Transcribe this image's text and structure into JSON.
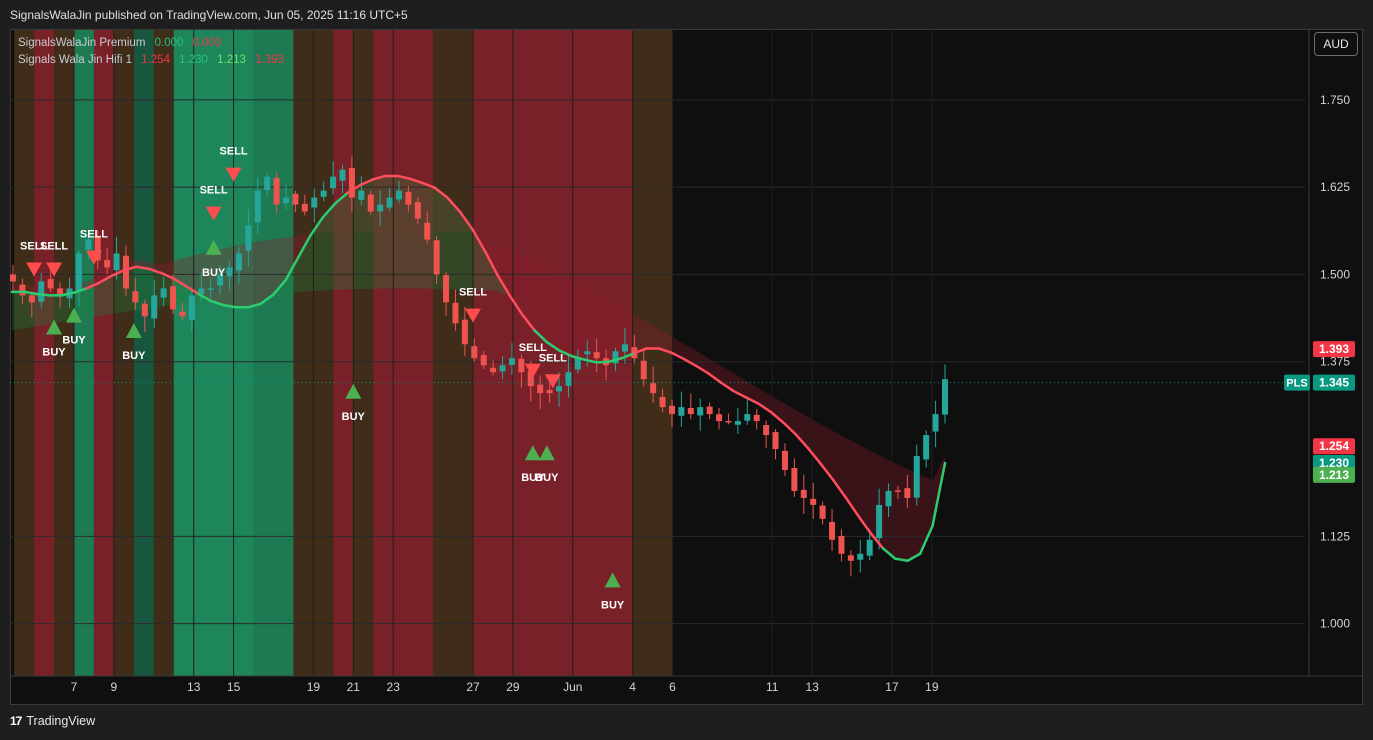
{
  "header": {
    "publish_text": "SignalsWalaJin published on TradingView.com, Jun 05, 2025 11:16 UTC+5"
  },
  "legend": {
    "row1": {
      "name": "SignalsWalaJin Premium",
      "values": [
        "0.000",
        "0.000"
      ],
      "colors": [
        "#26c281",
        "#f23645"
      ]
    },
    "row2": {
      "name": "Signals Wala Jin Hifi 1",
      "values": [
        "1.254",
        "1.230",
        "1.213",
        "1.393"
      ],
      "colors": [
        "#f23645",
        "#26c281",
        "#66e36b",
        "#f23645"
      ]
    }
  },
  "currency_button": "AUD",
  "footer": {
    "brand": "TradingView",
    "logo_glyph": "17"
  },
  "colors": {
    "up": "#26a69a",
    "down": "#ef5350",
    "line_up": "#2ecc71",
    "line_down": "#ff4d5e",
    "buy": "#4caf50",
    "sell": "#ff4d4d"
  },
  "chart_data": {
    "type": "candlestick",
    "ylim": [
      0.925,
      1.85
    ],
    "y_ticks": [
      "1.750",
      "1.625",
      "1.500",
      "1.375",
      "1.125",
      "1.000"
    ],
    "x_ticks": [
      "7",
      "9",
      "13",
      "15",
      "19",
      "21",
      "23",
      "27",
      "29",
      "Jun",
      "4",
      "6",
      "11",
      "13",
      "17",
      "19"
    ],
    "x_tick_dates": [
      "2025-05-07",
      "2025-05-09",
      "2025-05-13",
      "2025-05-15",
      "2025-05-19",
      "2025-05-21",
      "2025-05-23",
      "2025-05-27",
      "2025-05-29",
      "2025-06-01",
      "2025-06-04",
      "2025-06-06",
      "2025-06-11",
      "2025-06-13",
      "2025-06-17",
      "2025-06-19"
    ],
    "price_labels": [
      {
        "label": "1.393",
        "value": 1.393,
        "color": "#f23645"
      },
      {
        "label": "1.345",
        "value": 1.345,
        "color": "#089981",
        "tag": "PLS"
      },
      {
        "label": "1.254",
        "value": 1.254,
        "color": "#f23645"
      },
      {
        "label": "1.230",
        "value": 1.23,
        "color": "#089981"
      },
      {
        "label": "1.213",
        "value": 1.213,
        "color": "#4caf50"
      }
    ],
    "close": [
      1.49,
      1.47,
      1.46,
      1.49,
      1.48,
      1.47,
      1.48,
      1.53,
      1.55,
      1.52,
      1.51,
      1.53,
      1.48,
      1.46,
      1.44,
      1.47,
      1.48,
      1.45,
      1.44,
      1.47,
      1.48,
      1.48,
      1.5,
      1.51,
      1.53,
      1.57,
      1.62,
      1.64,
      1.6,
      1.61,
      1.6,
      1.59,
      1.61,
      1.62,
      1.64,
      1.65,
      1.61,
      1.62,
      1.59,
      1.6,
      1.61,
      1.62,
      1.6,
      1.58,
      1.55,
      1.5,
      1.46,
      1.43,
      1.4,
      1.38,
      1.37,
      1.36,
      1.37,
      1.38,
      1.36,
      1.34,
      1.33,
      1.33,
      1.34,
      1.36,
      1.38,
      1.39,
      1.38,
      1.37,
      1.39,
      1.4,
      1.38,
      1.35,
      1.33,
      1.31,
      1.3,
      1.31,
      1.3,
      1.31,
      1.3,
      1.29,
      1.29,
      1.29,
      1.3,
      1.29,
      1.27,
      1.25,
      1.22,
      1.19,
      1.18,
      1.17,
      1.15,
      1.12,
      1.1,
      1.09,
      1.1,
      1.12,
      1.17,
      1.19,
      1.19,
      1.18,
      1.24,
      1.27,
      1.3,
      1.35
    ],
    "line": [
      1.475,
      1.475,
      1.472,
      1.47,
      1.47,
      1.474,
      1.48,
      1.488,
      1.498,
      1.506,
      1.511,
      1.508,
      1.502,
      1.494,
      1.483,
      1.472,
      1.462,
      1.456,
      1.453,
      1.453,
      1.458,
      1.471,
      1.492,
      1.524,
      1.556,
      1.582,
      1.602,
      1.617,
      1.628,
      1.636,
      1.641,
      1.641,
      1.637,
      1.631,
      1.624,
      1.61,
      1.59,
      1.565,
      1.534,
      1.5,
      1.47,
      1.443,
      1.42,
      1.403,
      1.391,
      1.383,
      1.378,
      1.374,
      1.375,
      1.38,
      1.387,
      1.394,
      1.394,
      1.388,
      1.379,
      1.369,
      1.358,
      1.345,
      1.333,
      1.324,
      1.315,
      1.303,
      1.288,
      1.271,
      1.251,
      1.229,
      1.206,
      1.181,
      1.155,
      1.13,
      1.108,
      1.093,
      1.09,
      1.1,
      1.14,
      1.23
    ],
    "line_dir": [
      "up",
      "up",
      "up",
      "up",
      "up",
      "up",
      "down",
      "down",
      "down",
      "down",
      "down",
      "down",
      "down",
      "down",
      "down",
      "up",
      "up",
      "up",
      "up",
      "up",
      "up",
      "up",
      "up",
      "up",
      "up",
      "up",
      "up",
      "down",
      "down",
      "down",
      "down",
      "down",
      "down",
      "down",
      "down",
      "down",
      "down",
      "down",
      "down",
      "down",
      "down",
      "down",
      "up",
      "up",
      "up",
      "up",
      "up",
      "up",
      "up",
      "up",
      "down",
      "down",
      "down",
      "down",
      "down",
      "down",
      "down",
      "down",
      "down",
      "down",
      "down",
      "down",
      "down",
      "down",
      "down",
      "down",
      "down",
      "down",
      "down",
      "down",
      "up",
      "up",
      "up",
      "up",
      "up",
      "up"
    ],
    "signals": [
      {
        "type": "SELL",
        "x": "2025-05-05",
        "value": 1.507
      },
      {
        "type": "SELL",
        "x": "2025-05-06",
        "value": 1.507
      },
      {
        "type": "SELL",
        "x": "2025-05-08",
        "value": 1.524
      },
      {
        "type": "SELL",
        "x": "2025-05-14",
        "value": 1.587
      },
      {
        "type": "SELL",
        "x": "2025-05-15",
        "value": 1.643
      },
      {
        "type": "SELL",
        "x": "2025-05-27",
        "value": 1.441
      },
      {
        "type": "SELL",
        "x": "2025-05-30",
        "value": 1.362
      },
      {
        "type": "SELL",
        "x": "2025-05-31",
        "value": 1.347
      },
      {
        "type": "BUY",
        "x": "2025-05-06",
        "value": 1.424
      },
      {
        "type": "BUY",
        "x": "2025-05-07",
        "value": 1.441
      },
      {
        "type": "BUY",
        "x": "2025-05-10",
        "value": 1.419
      },
      {
        "type": "BUY",
        "x": "2025-05-14",
        "value": 1.538
      },
      {
        "type": "BUY",
        "x": "2025-05-21",
        "value": 1.332
      },
      {
        "type": "BUY",
        "x": "2025-05-30",
        "value": 1.244
      },
      {
        "type": "BUY",
        "x": "2025-05-30",
        "value": 1.244
      },
      {
        "type": "BUY",
        "x": "2025-06-03",
        "value": 1.062
      }
    ],
    "background_zones": [
      {
        "x": [
          "2025-05-04",
          "2025-05-05"
        ],
        "color": "#ff9f3f33"
      },
      {
        "x": [
          "2025-05-05",
          "2025-05-06"
        ],
        "color": "#f2364577"
      },
      {
        "x": [
          "2025-05-06",
          "2025-05-07"
        ],
        "color": "#ff9f3f33"
      },
      {
        "x": [
          "2025-05-07",
          "2025-05-08"
        ],
        "color": "#26c28199"
      },
      {
        "x": [
          "2025-05-08",
          "2025-05-09"
        ],
        "color": "#f2364577"
      },
      {
        "x": [
          "2025-05-09",
          "2025-05-10"
        ],
        "color": "#ff9f3f33"
      },
      {
        "x": [
          "2025-05-10",
          "2025-05-11"
        ],
        "color": "#26c28166"
      },
      {
        "x": [
          "2025-05-11",
          "2025-05-12"
        ],
        "color": "#ff9f3f33"
      },
      {
        "x": [
          "2025-05-12",
          "2025-05-16"
        ],
        "color": "#26c281aa"
      },
      {
        "x": [
          "2025-05-16",
          "2025-05-18"
        ],
        "color": "#26c28199"
      },
      {
        "x": [
          "2025-05-18",
          "2025-05-20"
        ],
        "color": "#ff9f3f33"
      },
      {
        "x": [
          "2025-05-20",
          "2025-05-21"
        ],
        "color": "#f2364577"
      },
      {
        "x": [
          "2025-05-21",
          "2025-05-22"
        ],
        "color": "#ff9f3f33"
      },
      {
        "x": [
          "2025-05-22",
          "2025-05-25"
        ],
        "color": "#f2364577"
      },
      {
        "x": [
          "2025-05-25",
          "2025-05-27"
        ],
        "color": "#ff9f3f33"
      },
      {
        "x": [
          "2025-05-27",
          "2025-06-04"
        ],
        "color": "#f2364577"
      },
      {
        "x": [
          "2025-06-04",
          "2025-06-06"
        ],
        "color": "#ff9f3f33"
      }
    ]
  }
}
